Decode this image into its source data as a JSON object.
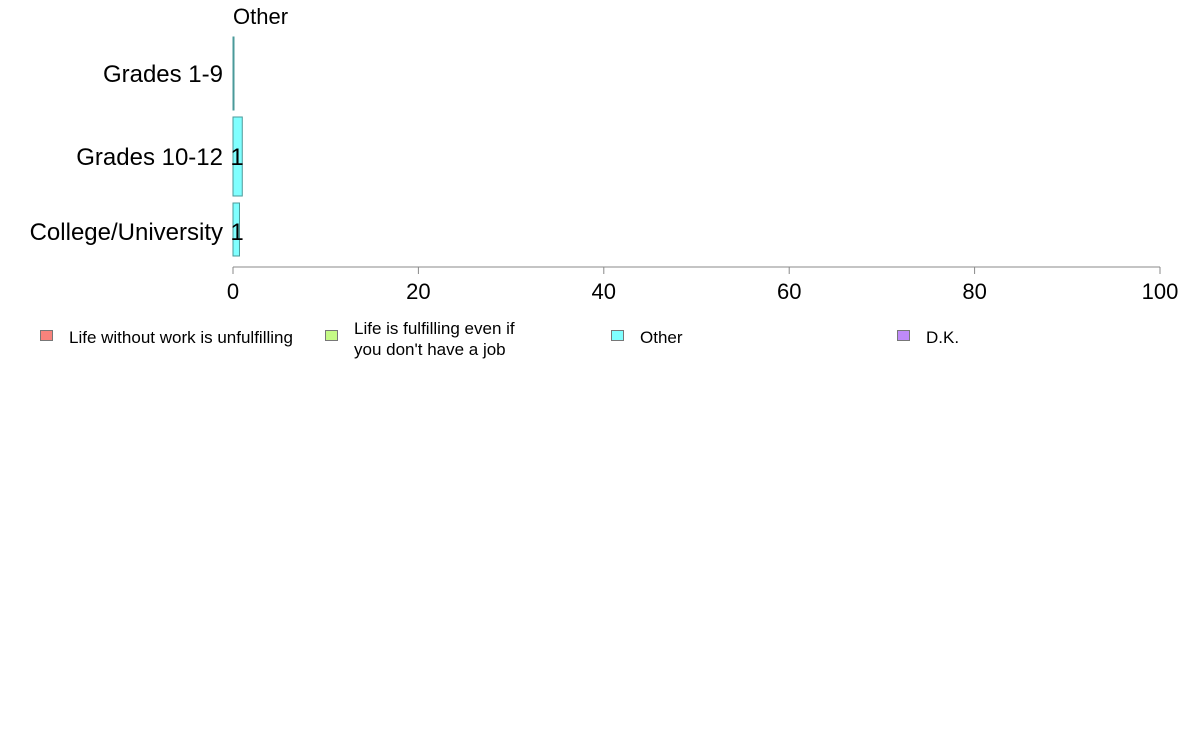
{
  "chart_data": {
    "type": "bar",
    "orientation": "horizontal",
    "panel_title": "Other",
    "categories": [
      "Grades 1-9",
      "Grades 10-12",
      "College/University"
    ],
    "series": [
      {
        "name": "Other",
        "values": [
          0.1,
          1,
          0.7
        ],
        "data_labels": [
          "",
          "1",
          "1"
        ],
        "color": "#80FFFF"
      }
    ],
    "xlim": [
      0,
      100
    ],
    "xticks": [
      "0",
      "20",
      "40",
      "60",
      "80",
      "100"
    ],
    "grid": false,
    "legend_position": "bottom",
    "legend": [
      {
        "label": "Life without work is unfulfilling",
        "color": "#F8837C"
      },
      {
        "label": "Life is fulfilling even if you don't have a job",
        "color": "#C5FA86"
      },
      {
        "label": "Other",
        "color": "#80FFFF"
      },
      {
        "label": "D.K.",
        "color": "#BF8AF9"
      }
    ]
  }
}
